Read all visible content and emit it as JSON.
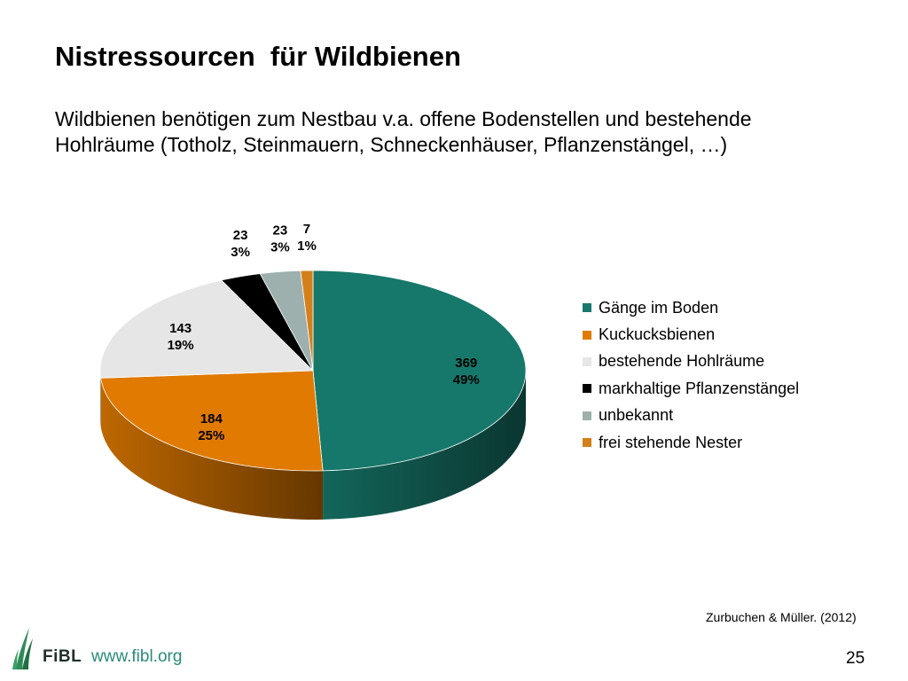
{
  "slide": {
    "title": "Nistressourcen  für Wildbienen",
    "subtitle_lines": [
      "Wildbienen benötigen zum Nestbau v.a. offene Bodenstellen und bestehende",
      "Hohlräume (Totholz, Steinmauern, Schneckenhäuser, Pflanzenstängel, …)"
    ],
    "source": "Zurbuchen & Müller. (2012)",
    "logo_text": "FiBL",
    "url": "www.fibl.org",
    "page_number": "25"
  },
  "chart_data": {
    "type": "pie",
    "style": "3d",
    "legend_position": "right",
    "slices": [
      {
        "label": "Gänge im Boden",
        "value": 369,
        "percent": "49%",
        "color": "#16786b"
      },
      {
        "label": "Kuckucksbienen",
        "value": 184,
        "percent": "25%",
        "color": "#e07a00"
      },
      {
        "label": "bestehende Hohlräume",
        "value": 143,
        "percent": "19%",
        "color": "#e6e6e6"
      },
      {
        "label": "markhaltige Pflanzenstängel",
        "value": 23,
        "percent": "3%",
        "color": "#000000"
      },
      {
        "label": "unbekannt",
        "value": 23,
        "percent": "3%",
        "color": "#9db0ae"
      },
      {
        "label": "frei stehende Nester",
        "value": 7,
        "percent": "1%",
        "color": "#d4801a"
      }
    ]
  }
}
